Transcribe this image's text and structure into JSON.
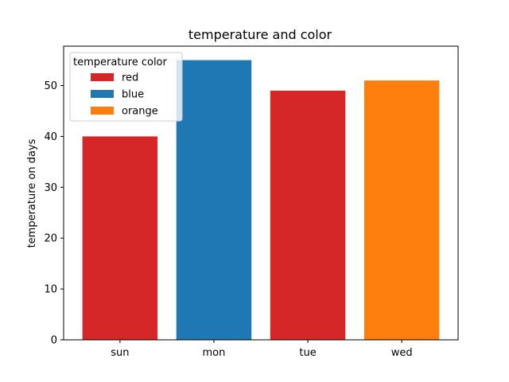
{
  "chart_data": {
    "type": "bar",
    "title": "temperature and color",
    "xlabel": "",
    "ylabel": "temperature on days",
    "categories": [
      "sun",
      "mon",
      "tue",
      "wed"
    ],
    "values": [
      40,
      55,
      49,
      51
    ],
    "bar_colors": [
      "#d62728",
      "#1f77b4",
      "#d62728",
      "#ff7f0e"
    ],
    "ylim": [
      0,
      57.75
    ],
    "yticks": [
      0,
      10,
      20,
      30,
      40,
      50
    ],
    "grid": false,
    "legend": {
      "title": "temperature  color",
      "placement": "top-left",
      "entries": [
        {
          "label": "red",
          "color": "#d62728"
        },
        {
          "label": "blue",
          "color": "#1f77b4"
        },
        {
          "label": "orange",
          "color": "#ff7f0e"
        }
      ]
    }
  }
}
